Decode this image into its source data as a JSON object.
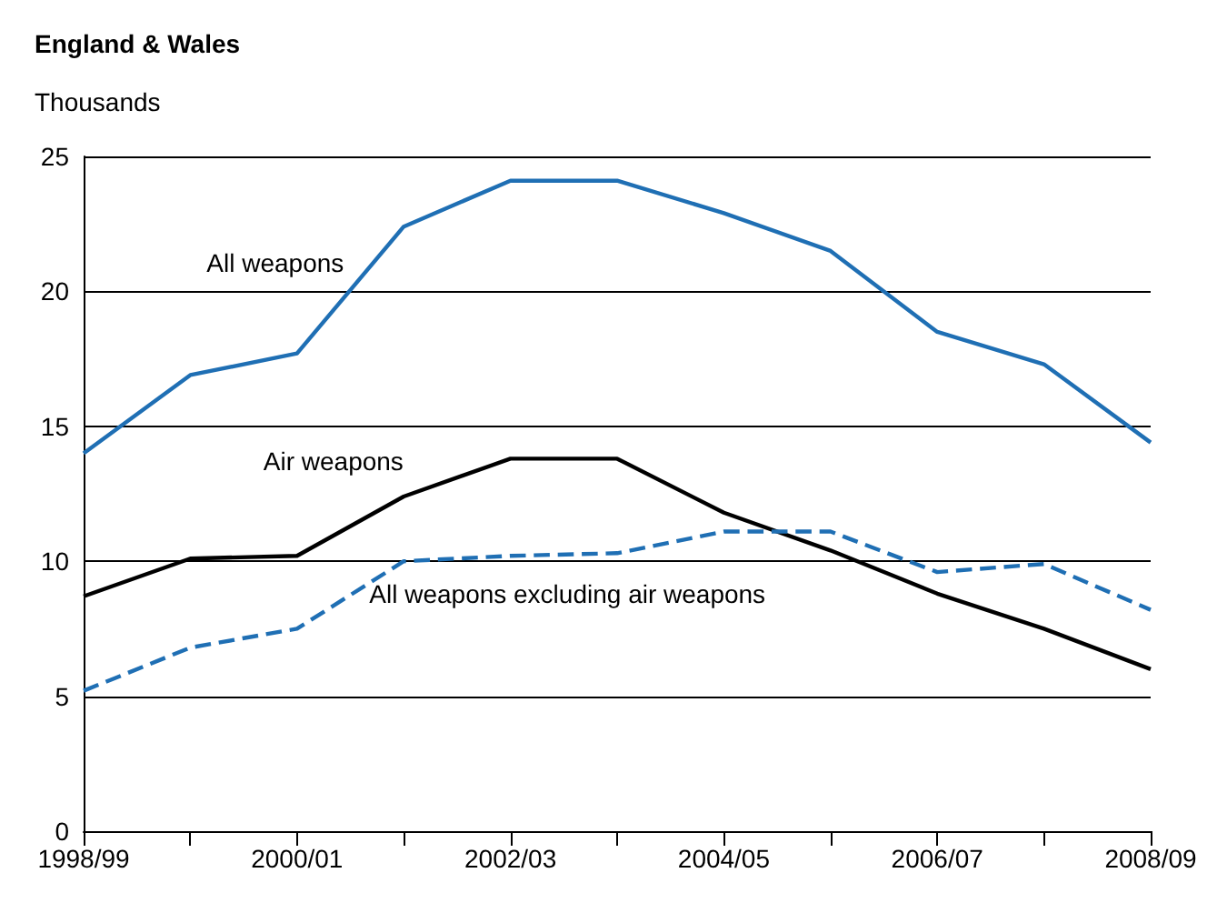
{
  "chart_data": {
    "type": "line",
    "title": "England & Wales",
    "subtitle": "Thousands",
    "categories": [
      "1998/99",
      null,
      "2000/01",
      null,
      "2002/03",
      null,
      "2004/05",
      null,
      "2006/07",
      null,
      "2008/09"
    ],
    "series": [
      {
        "name": "All weapons",
        "color": "#1f6fb4",
        "line_style": "solid",
        "values": [
          14.0,
          16.9,
          17.7,
          22.4,
          24.1,
          24.1,
          22.9,
          21.5,
          18.5,
          17.3,
          14.4
        ]
      },
      {
        "name": "Air weapons",
        "color": "#000000",
        "line_style": "solid",
        "values": [
          8.7,
          10.1,
          10.2,
          12.4,
          13.8,
          13.8,
          11.8,
          10.4,
          8.8,
          7.5,
          6.0
        ]
      },
      {
        "name": "All weapons excluding air weapons",
        "color": "#1f6fb4",
        "line_style": "dashed",
        "values": [
          5.2,
          6.8,
          7.5,
          10.0,
          10.2,
          10.3,
          11.1,
          11.1,
          9.6,
          9.9,
          8.2
        ]
      }
    ],
    "ylim": [
      0,
      25
    ],
    "yticks": [
      0,
      5,
      10,
      15,
      20,
      25
    ],
    "grid": "y",
    "legend": false,
    "marker": "none"
  }
}
